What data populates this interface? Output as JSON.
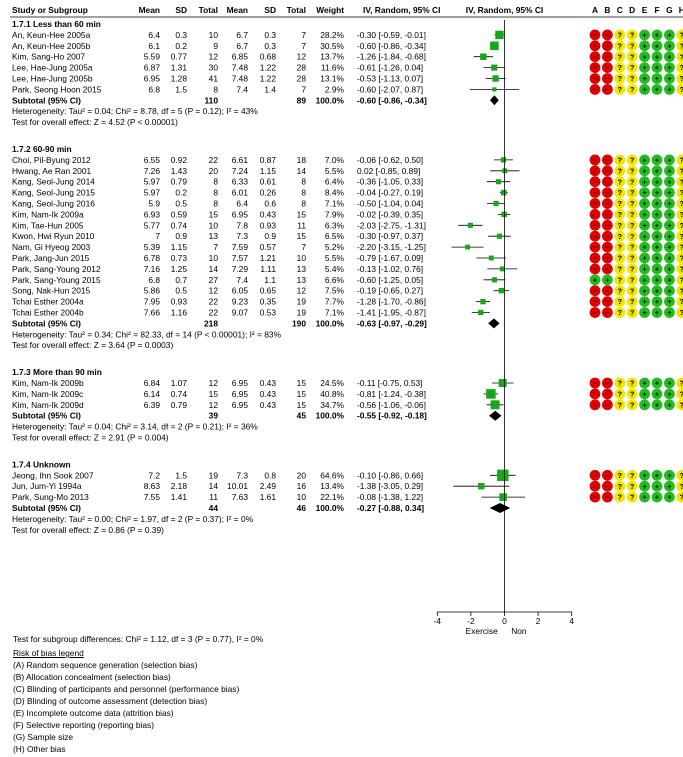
{
  "headers": {
    "study": "Study or Subgroup",
    "mean1": "Mean",
    "sd1": "SD",
    "total1": "Total",
    "mean2": "Mean",
    "sd2": "SD",
    "total2": "Total",
    "weight": "Weight",
    "ci": "IV, Random, 95% CI",
    "plot": "IV, Random, 95% CI",
    "bias_letters": [
      "A",
      "B",
      "C",
      "D",
      "E",
      "F",
      "G",
      "H"
    ]
  },
  "chart_data": {
    "type": "forest",
    "x_axis": {
      "ticks": [
        -4,
        -2,
        0,
        2,
        4
      ],
      "range": [
        -5,
        5
      ],
      "left_label": "Exercise",
      "right_label": "Non"
    },
    "subgroups": [
      {
        "title": "1.7.1 Less than 60 min",
        "studies": [
          {
            "name": "An, Keun-Hee 2005a",
            "m1": "6.4",
            "sd1": "0.3",
            "n1": "10",
            "m2": "6.7",
            "sd2": "0.3",
            "n2": "7",
            "weight": "28.2%",
            "ci": "-0.30 [-0.59, -0.01]",
            "est": -0.3,
            "lo": -0.59,
            "hi": -0.01,
            "bias": [
              "r",
              "r",
              "?",
              "?",
              "+",
              "+",
              "+",
              "?"
            ]
          },
          {
            "name": "An, Keun-Hee 2005b",
            "m1": "6.1",
            "sd1": "0.2",
            "n1": "9",
            "m2": "6.7",
            "sd2": "0.3",
            "n2": "7",
            "weight": "30.5%",
            "ci": "-0.60 [-0.86, -0.34]",
            "est": -0.6,
            "lo": -0.86,
            "hi": -0.34,
            "bias": [
              "r",
              "r",
              "?",
              "?",
              "+",
              "+",
              "+",
              "?"
            ]
          },
          {
            "name": "Kim, Sang-Ho 2007",
            "m1": "5.59",
            "sd1": "0.77",
            "n1": "12",
            "m2": "6.85",
            "sd2": "0.68",
            "n2": "12",
            "weight": "13.7%",
            "ci": "-1.26 [-1.84, -0.68]",
            "est": -1.26,
            "lo": -1.84,
            "hi": -0.68,
            "bias": [
              "r",
              "r",
              "?",
              "?",
              "+",
              "+",
              "+",
              "?"
            ]
          },
          {
            "name": "Lee, Hae-Jung 2005a",
            "m1": "6.87",
            "sd1": "1.31",
            "n1": "30",
            "m2": "7.48",
            "sd2": "1.22",
            "n2": "28",
            "weight": "11.6%",
            "ci": "-0.61 [-1.26, 0.04]",
            "est": -0.61,
            "lo": -1.26,
            "hi": 0.04,
            "bias": [
              "r",
              "r",
              "?",
              "?",
              "+",
              "+",
              "+",
              "?"
            ]
          },
          {
            "name": "Lee, Hae-Jung 2005b",
            "m1": "6.95",
            "sd1": "1.28",
            "n1": "41",
            "m2": "7.48",
            "sd2": "1.22",
            "n2": "28",
            "weight": "13.1%",
            "ci": "-0.53 [-1.13, 0.07]",
            "est": -0.53,
            "lo": -1.13,
            "hi": 0.07,
            "bias": [
              "r",
              "r",
              "?",
              "?",
              "+",
              "+",
              "+",
              "?"
            ]
          },
          {
            "name": "Park, Seong Hoon 2015",
            "m1": "6.8",
            "sd1": "1.5",
            "n1": "8",
            "m2": "7.4",
            "sd2": "1.4",
            "n2": "7",
            "weight": "2.9%",
            "ci": "-0.60 [-2.07, 0.87]",
            "est": -0.6,
            "lo": -2.07,
            "hi": 0.87,
            "bias": [
              "r",
              "r",
              "?",
              "?",
              "+",
              "+",
              "+",
              "?"
            ]
          }
        ],
        "subtotal": {
          "label": "Subtotal (95% CI)",
          "n1": "110",
          "n2": "89",
          "weight": "100.0%",
          "ci": "-0.60 [-0.86, -0.34]",
          "est": -0.6,
          "lo": -0.86,
          "hi": -0.34
        },
        "heterogeneity": "Heterogeneity: Tau² = 0.04; Chi² = 8.78, df = 5 (P = 0.12); I² = 43%",
        "overall": "Test for overall effect: Z = 4.52 (P < 0.00001)"
      },
      {
        "title": "1.7.2 60-90 min",
        "studies": [
          {
            "name": "Choi, Pil-Byung 2012",
            "m1": "6.55",
            "sd1": "0.92",
            "n1": "22",
            "m2": "6.61",
            "sd2": "0.87",
            "n2": "18",
            "weight": "7.0%",
            "ci": "-0.06 [-0.62, 0.50]",
            "est": -0.06,
            "lo": -0.62,
            "hi": 0.5,
            "bias": [
              "r",
              "r",
              "?",
              "?",
              "+",
              "+",
              "+",
              "?"
            ]
          },
          {
            "name": "Hwang, Ae Ran 2001",
            "m1": "7.26",
            "sd1": "1.43",
            "n1": "20",
            "m2": "7.24",
            "sd2": "1.15",
            "n2": "14",
            "weight": "5.5%",
            "ci": "0.02 [-0.85, 0.89]",
            "est": 0.02,
            "lo": -0.85,
            "hi": 0.89,
            "bias": [
              "r",
              "r",
              "?",
              "?",
              "+",
              "+",
              "+",
              "?"
            ]
          },
          {
            "name": "Kang, Seol-Jung 2014",
            "m1": "5.97",
            "sd1": "0.79",
            "n1": "8",
            "m2": "6.33",
            "sd2": "0.61",
            "n2": "8",
            "weight": "6.4%",
            "ci": "-0.36 [-1.05, 0.33]",
            "est": -0.36,
            "lo": -1.05,
            "hi": 0.33,
            "bias": [
              "r",
              "r",
              "?",
              "?",
              "+",
              "+",
              "+",
              "?"
            ]
          },
          {
            "name": "Kang, Seol-Jung 2015",
            "m1": "5.97",
            "sd1": "0.2",
            "n1": "8",
            "m2": "6.01",
            "sd2": "0.26",
            "n2": "8",
            "weight": "8.4%",
            "ci": "-0.04 [-0.27, 0.19]",
            "est": -0.04,
            "lo": -0.27,
            "hi": 0.19,
            "bias": [
              "r",
              "r",
              "?",
              "?",
              "+",
              "+",
              "+",
              "?"
            ]
          },
          {
            "name": "Kang, Seol-Jung 2016",
            "m1": "5.9",
            "sd1": "0.5",
            "n1": "8",
            "m2": "6.4",
            "sd2": "0.6",
            "n2": "8",
            "weight": "7.1%",
            "ci": "-0.50 [-1.04, 0.04]",
            "est": -0.5,
            "lo": -1.04,
            "hi": 0.04,
            "bias": [
              "r",
              "r",
              "?",
              "?",
              "+",
              "+",
              "+",
              "?"
            ]
          },
          {
            "name": "Kim, Nam-Ik 2009a",
            "m1": "6.93",
            "sd1": "0.59",
            "n1": "15",
            "m2": "6.95",
            "sd2": "0.43",
            "n2": "15",
            "weight": "7.9%",
            "ci": "-0.02 [-0.39, 0.35]",
            "est": -0.02,
            "lo": -0.39,
            "hi": 0.35,
            "bias": [
              "r",
              "r",
              "?",
              "?",
              "+",
              "+",
              "+",
              "?"
            ]
          },
          {
            "name": "Kim, Tae-Hun 2005",
            "m1": "5.77",
            "sd1": "0.74",
            "n1": "10",
            "m2": "7.8",
            "sd2": "0.93",
            "n2": "11",
            "weight": "6.3%",
            "ci": "-2.03 [-2.75, -1.31]",
            "est": -2.03,
            "lo": -2.75,
            "hi": -1.31,
            "bias": [
              "r",
              "r",
              "?",
              "?",
              "+",
              "+",
              "+",
              "?"
            ]
          },
          {
            "name": "Kwon, Hwi Ryun 2010",
            "m1": "7",
            "sd1": "0.9",
            "n1": "13",
            "m2": "7.3",
            "sd2": "0.9",
            "n2": "15",
            "weight": "6.5%",
            "ci": "-0.30 [-0.97, 0.37]",
            "est": -0.3,
            "lo": -0.97,
            "hi": 0.37,
            "bias": [
              "r",
              "r",
              "?",
              "?",
              "+",
              "+",
              "+",
              "?"
            ]
          },
          {
            "name": "Nam, Gi Hyeog 2003",
            "m1": "5.39",
            "sd1": "1.15",
            "n1": "7",
            "m2": "7.59",
            "sd2": "0.57",
            "n2": "7",
            "weight": "5.2%",
            "ci": "-2.20 [-3.15, -1.25]",
            "est": -2.2,
            "lo": -3.15,
            "hi": -1.25,
            "bias": [
              "r",
              "r",
              "?",
              "?",
              "+",
              "+",
              "+",
              "?"
            ]
          },
          {
            "name": "Park, Jang-Jun 2015",
            "m1": "6.78",
            "sd1": "0.73",
            "n1": "10",
            "m2": "7.57",
            "sd2": "1.21",
            "n2": "10",
            "weight": "5.5%",
            "ci": "-0.79 [-1.67, 0.09]",
            "est": -0.79,
            "lo": -1.67,
            "hi": 0.09,
            "bias": [
              "r",
              "r",
              "?",
              "?",
              "+",
              "+",
              "+",
              "?"
            ]
          },
          {
            "name": "Park, Sang-Young 2012",
            "m1": "7.16",
            "sd1": "1.25",
            "n1": "14",
            "m2": "7.29",
            "sd2": "1.11",
            "n2": "13",
            "weight": "5.4%",
            "ci": "-0.13 [-1.02, 0.76]",
            "est": -0.13,
            "lo": -1.02,
            "hi": 0.76,
            "bias": [
              "r",
              "r",
              "?",
              "?",
              "+",
              "+",
              "+",
              "?"
            ]
          },
          {
            "name": "Park, Sang-Young 2015",
            "m1": "6.8",
            "sd1": "0.7",
            "n1": "27",
            "m2": "7.4",
            "sd2": "1.1",
            "n2": "13",
            "weight": "6.6%",
            "ci": "-0.60 [-1.25, 0.05]",
            "est": -0.6,
            "lo": -1.25,
            "hi": 0.05,
            "bias": [
              "+",
              "+",
              "?",
              "?",
              "+",
              "+",
              "+",
              "?"
            ]
          },
          {
            "name": "Song, Nak-Hun 2015",
            "m1": "5.86",
            "sd1": "0.5",
            "n1": "12",
            "m2": "6.05",
            "sd2": "0.65",
            "n2": "12",
            "weight": "7.5%",
            "ci": "-0.19 [-0.65, 0.27]",
            "est": -0.19,
            "lo": -0.65,
            "hi": 0.27,
            "bias": [
              "r",
              "r",
              "?",
              "?",
              "+",
              "+",
              "+",
              "?"
            ]
          },
          {
            "name": "Tchai Esther 2004a",
            "m1": "7.95",
            "sd1": "0.93",
            "n1": "22",
            "m2": "9.23",
            "sd2": "0.35",
            "n2": "19",
            "weight": "7.7%",
            "ci": "-1.28 [-1.70, -0.86]",
            "est": -1.28,
            "lo": -1.7,
            "hi": -0.86,
            "bias": [
              "r",
              "r",
              "?",
              "?",
              "+",
              "+",
              "+",
              "?"
            ]
          },
          {
            "name": "Tchai Esther 2004b",
            "m1": "7.66",
            "sd1": "1.16",
            "n1": "22",
            "m2": "9.07",
            "sd2": "0.53",
            "n2": "19",
            "weight": "7.1%",
            "ci": "-1.41 [-1.95, -0.87]",
            "est": -1.41,
            "lo": -1.95,
            "hi": -0.87,
            "bias": [
              "r",
              "r",
              "?",
              "?",
              "+",
              "+",
              "+",
              "?"
            ]
          }
        ],
        "subtotal": {
          "label": "Subtotal (95% CI)",
          "n1": "218",
          "n2": "190",
          "weight": "100.0%",
          "ci": "-0.63 [-0.97, -0.29]",
          "est": -0.63,
          "lo": -0.97,
          "hi": -0.29
        },
        "heterogeneity": "Heterogeneity: Tau² = 0.34; Chi² = 82.33, df = 14 (P < 0.00001); I² = 83%",
        "overall": "Test for overall effect: Z = 3.64 (P = 0.0003)"
      },
      {
        "title": "1.7.3 More than 90 min",
        "studies": [
          {
            "name": "Kim, Nam-Ik 2009b",
            "m1": "6.84",
            "sd1": "1.07",
            "n1": "12",
            "m2": "6.95",
            "sd2": "0.43",
            "n2": "15",
            "weight": "24.5%",
            "ci": "-0.11 [-0.75, 0.53]",
            "est": -0.11,
            "lo": -0.75,
            "hi": 0.53,
            "bias": [
              "r",
              "r",
              "?",
              "?",
              "+",
              "+",
              "+",
              "?"
            ]
          },
          {
            "name": "Kim, Nam-Ik 2009c",
            "m1": "6.14",
            "sd1": "0.74",
            "n1": "15",
            "m2": "6.95",
            "sd2": "0.43",
            "n2": "15",
            "weight": "40.8%",
            "ci": "-0.81 [-1.24, -0.38]",
            "est": -0.81,
            "lo": -1.24,
            "hi": -0.38,
            "bias": [
              "r",
              "r",
              "?",
              "?",
              "+",
              "+",
              "+",
              "?"
            ]
          },
          {
            "name": "Kim, Nam-Ik 2009d",
            "m1": "6.39",
            "sd1": "0.79",
            "n1": "12",
            "m2": "6.95",
            "sd2": "0.43",
            "n2": "15",
            "weight": "34.7%",
            "ci": "-0.56 [-1.06, -0.06]",
            "est": -0.56,
            "lo": -1.06,
            "hi": -0.06,
            "bias": [
              "r",
              "r",
              "?",
              "?",
              "+",
              "+",
              "+",
              "?"
            ]
          }
        ],
        "subtotal": {
          "label": "Subtotal (95% CI)",
          "n1": "39",
          "n2": "45",
          "weight": "100.0%",
          "ci": "-0.55 [-0.92, -0.18]",
          "est": -0.55,
          "lo": -0.92,
          "hi": -0.18
        },
        "heterogeneity": "Heterogeneity: Tau² = 0.04; Chi² = 3.14, df = 2 (P = 0.21); I² = 36%",
        "overall": "Test for overall effect: Z = 2.91 (P = 0.004)"
      },
      {
        "title": "1.7.4 Unknown",
        "studies": [
          {
            "name": "Jeong, Ihn Sook 2007",
            "m1": "7.2",
            "sd1": "1.5",
            "n1": "19",
            "m2": "7.3",
            "sd2": "0.8",
            "n2": "20",
            "weight": "64.6%",
            "ci": "-0.10 [-0.86, 0.66]",
            "est": -0.1,
            "lo": -0.86,
            "hi": 0.66,
            "bias": [
              "r",
              "r",
              "?",
              "?",
              "+",
              "+",
              "+",
              "?"
            ]
          },
          {
            "name": "Jun, Jum-Yi 1994a",
            "m1": "8.63",
            "sd1": "2.18",
            "n1": "14",
            "m2": "10.01",
            "sd2": "2.49",
            "n2": "16",
            "weight": "13.4%",
            "ci": "-1.38 [-3.05, 0.29]",
            "est": -1.38,
            "lo": -3.05,
            "hi": 0.29,
            "bias": [
              "r",
              "r",
              "?",
              "?",
              "+",
              "+",
              "+",
              "?"
            ]
          },
          {
            "name": "Park, Sung-Mo 2013",
            "m1": "7.55",
            "sd1": "1.41",
            "n1": "11",
            "m2": "7.63",
            "sd2": "1.61",
            "n2": "10",
            "weight": "22.1%",
            "ci": "-0.08 [-1.38, 1.22]",
            "est": -0.08,
            "lo": -1.38,
            "hi": 1.22,
            "bias": [
              "r",
              "r",
              "?",
              "?",
              "+",
              "+",
              "+",
              "?"
            ]
          }
        ],
        "subtotal": {
          "label": "Subtotal (95% CI)",
          "n1": "44",
          "n2": "46",
          "weight": "100.0%",
          "ci": "-0.27 [-0.88, 0.34]",
          "est": -0.27,
          "lo": -0.88,
          "hi": 0.34
        },
        "heterogeneity": "Heterogeneity: Tau² = 0.00; Chi² = 1.97, df = 2 (P = 0.37); I² = 0%",
        "overall": "Test for overall effect: Z = 0.86 (P = 0.39)"
      }
    ]
  },
  "subgroup_test": "Test for subgroup differences: Chi² = 1.12, df = 3 (P = 0.77), I² = 0%",
  "legend": {
    "title": "Risk of bias legend",
    "items": [
      "(A) Random sequence generation (selection bias)",
      "(B) Allocation concealment (selection bias)",
      "(C) Blinding of participants and personnel (performance bias)",
      "(D) Blinding of outcome assessment (detection bias)",
      "(E) Incomplete outcome data (attrition bias)",
      "(F) Selective reporting (reporting bias)",
      "(G) Sample size",
      "(H) Other bias"
    ]
  },
  "colors": {
    "square": "#1aa61a",
    "diamond": "#000000",
    "bias_high": "#e00000",
    "bias_unclear": "#f2e600",
    "bias_low": "#22bb22",
    "rule": "#000000"
  }
}
